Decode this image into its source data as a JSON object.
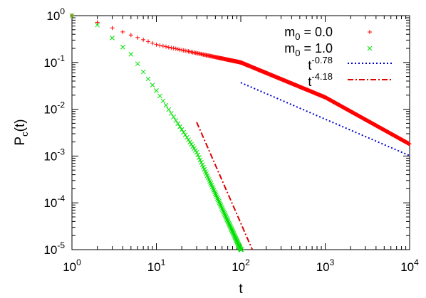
{
  "chart_data": {
    "type": "scatter",
    "xscale": "log",
    "yscale": "log",
    "xlim": [
      1,
      10000
    ],
    "ylim": [
      1e-05,
      1
    ],
    "xlabel": {
      "base": "t",
      "sub": "",
      "sup": ""
    },
    "ylabel": {
      "base": "P",
      "sub": "c",
      "after": "(t)"
    },
    "x_ticks": [
      {
        "value": 1,
        "base": "10",
        "exp": "0"
      },
      {
        "value": 10,
        "base": "10",
        "exp": "1"
      },
      {
        "value": 100,
        "base": "10",
        "exp": "2"
      },
      {
        "value": 1000,
        "base": "10",
        "exp": "3"
      },
      {
        "value": 10000,
        "base": "10",
        "exp": "4"
      }
    ],
    "y_ticks": [
      {
        "value": 1,
        "base": "10",
        "exp": "0"
      },
      {
        "value": 0.1,
        "base": "10",
        "exp": "-1"
      },
      {
        "value": 0.01,
        "base": "10",
        "exp": "-2"
      },
      {
        "value": 0.001,
        "base": "10",
        "exp": "-3"
      },
      {
        "value": 0.0001,
        "base": "10",
        "exp": "-4"
      },
      {
        "value": 1e-05,
        "base": "10",
        "exp": "-5"
      }
    ],
    "grid": false,
    "legend_position": "top-right",
    "series": [
      {
        "id": "m0",
        "legend": {
          "pre": "m",
          "sub": "0",
          "post": " = 0.0"
        },
        "color": "#ff0000",
        "marker": "plus",
        "t_range": [
          1,
          10000
        ],
        "model": "decay",
        "A": 0.12,
        "alpha": 0.495,
        "t0": 0.7,
        "sample": [
          {
            "x": 1,
            "y": 1.0
          },
          {
            "x": 2,
            "y": 0.72
          },
          {
            "x": 10,
            "y": 0.24
          },
          {
            "x": 100,
            "y": 0.1
          },
          {
            "x": 1000,
            "y": 0.018
          },
          {
            "x": 10000,
            "y": 0.0018
          }
        ]
      },
      {
        "id": "m1",
        "legend": {
          "pre": "m",
          "sub": "0",
          "post": " = 1.0"
        },
        "color": "#00e000",
        "marker": "cross",
        "t_range": [
          1,
          102
        ],
        "model": "stretched",
        "A": 0.68,
        "tau": 2.2,
        "beta": 0.5,
        "sample": [
          {
            "x": 1,
            "y": 1.0
          },
          {
            "x": 2,
            "y": 0.63
          },
          {
            "x": 5,
            "y": 0.15
          },
          {
            "x": 10,
            "y": 0.025
          },
          {
            "x": 30,
            "y": 0.0012
          },
          {
            "x": 100,
            "y": 1e-05
          }
        ]
      }
    ],
    "fits": [
      {
        "id": "fit1",
        "legend": {
          "base": "t",
          "exp": "-0.78"
        },
        "color": "#0000cc",
        "style": "dotted",
        "exponent": -0.78,
        "x_range": [
          100,
          10000
        ],
        "y_start": 0.037
      },
      {
        "id": "fit2",
        "legend": {
          "base": "t",
          "exp": "-4.18"
        },
        "color": "#dd0000",
        "style": "dashdot",
        "exponent": -4.18,
        "x_range": [
          30,
          137
        ],
        "y_start": 0.0053
      }
    ]
  }
}
